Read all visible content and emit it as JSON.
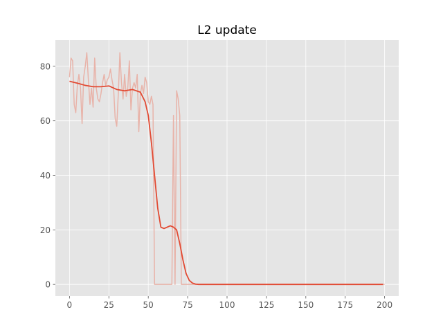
{
  "chart_data": {
    "type": "line",
    "title": "L2 update",
    "xlabel": "",
    "ylabel": "",
    "xlim": [
      -8.95,
      208.95
    ],
    "ylim": [
      -4.27,
      89.6
    ],
    "xticks": [
      0,
      25,
      50,
      75,
      100,
      125,
      150,
      175,
      200
    ],
    "yticks": [
      0,
      20,
      40,
      60,
      80
    ],
    "grid": true,
    "legend": "none",
    "colors": {
      "background": "#E5E5E5",
      "grid": "#FFFFFF",
      "raw": "#E8B3A9",
      "smooth": "#E24A33",
      "tick_text": "#555555"
    },
    "series": [
      {
        "role": "raw",
        "x": [
          0,
          1,
          2,
          3,
          4,
          5,
          6,
          7,
          8,
          9,
          10,
          11,
          12,
          13,
          14,
          15,
          16,
          17,
          18,
          19,
          20,
          21,
          22,
          23,
          24,
          25,
          26,
          27,
          28,
          29,
          30,
          31,
          32,
          33,
          34,
          35,
          36,
          37,
          38,
          39,
          40,
          41,
          42,
          43,
          44,
          45,
          46,
          47,
          48,
          49,
          50,
          51,
          52,
          53,
          54,
          55,
          56,
          57,
          58,
          59,
          60,
          61,
          62,
          63,
          64,
          65,
          66,
          67,
          68,
          69,
          70,
          71,
          72,
          73,
          74,
          75,
          76,
          77,
          78,
          79,
          80,
          200
        ],
        "y": [
          76,
          83,
          82,
          66,
          63,
          73,
          77,
          72,
          59,
          76,
          80,
          85,
          75,
          66,
          72,
          65,
          83,
          72,
          68,
          67,
          70,
          74,
          77,
          73,
          75,
          76,
          79,
          75,
          72,
          61,
          58,
          70,
          85,
          74,
          68,
          77,
          69,
          72,
          82,
          64,
          72,
          74,
          72,
          77,
          56,
          70,
          73,
          70,
          76,
          74,
          67,
          66,
          69,
          66,
          0,
          0,
          0,
          0,
          0,
          0,
          0,
          0,
          0,
          0,
          0,
          0,
          62,
          0,
          71,
          68,
          62,
          0,
          0,
          0,
          0,
          0,
          0,
          0,
          0,
          0,
          0,
          0
        ]
      },
      {
        "role": "smoothed",
        "x": [
          0,
          5,
          10,
          15,
          20,
          25,
          30,
          35,
          40,
          45,
          48,
          50,
          52,
          54,
          56,
          58,
          60,
          62,
          64,
          66,
          68,
          70,
          72,
          74,
          76,
          78,
          80,
          82,
          85,
          90,
          100,
          150,
          199
        ],
        "y": [
          74.5,
          73.8,
          73,
          72.5,
          72.5,
          72.8,
          71.5,
          71,
          71.5,
          70.5,
          67,
          62,
          52,
          40,
          28,
          21,
          20.5,
          21,
          21.5,
          21,
          20,
          15,
          9,
          4,
          1.5,
          0.5,
          0.1,
          0,
          0,
          0,
          0,
          0,
          0
        ]
      }
    ]
  }
}
